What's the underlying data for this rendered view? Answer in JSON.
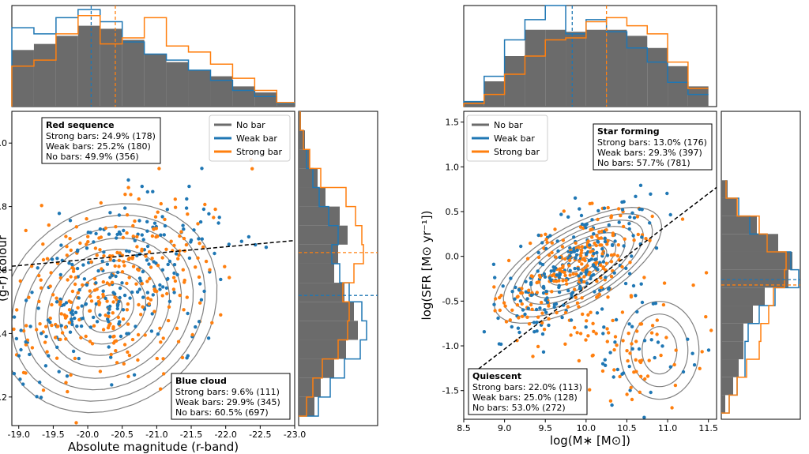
{
  "colors": {
    "no_bar": "#6b6b6b",
    "weak_bar": "#1f77b4",
    "strong_bar": "#ff7f0e",
    "contour": "#808080",
    "divider": "#000000"
  },
  "chart_data": [
    {
      "type": "scatter",
      "panel": "left",
      "xlabel": "Absolute magnitude (r-band)",
      "ylabel": "(g-r) colour",
      "xlim": [
        -18.9,
        -23.0
      ],
      "ylim": [
        0.11,
        1.1
      ],
      "xticks": [
        "-19.0",
        "-19.5",
        "-20.0",
        "-20.5",
        "-21.0",
        "-21.5",
        "-22.0",
        "-22.5",
        "-23.0"
      ],
      "yticks": [
        "0.2",
        "0.4",
        "0.6",
        "0.8",
        "1.0"
      ],
      "legend": {
        "placement": "top-right",
        "entries": [
          "No bar",
          "Weak bar",
          "Strong bar"
        ]
      },
      "divider_line": {
        "x": [
          -18.9,
          -23.0
        ],
        "y": [
          0.612,
          0.693
        ]
      },
      "annotations": [
        {
          "title": "Red sequence",
          "lines": [
            "Strong bars: 24.9% (178)",
            "Weak bars: 25.2% (180)",
            "No bars: 49.9% (356)"
          ],
          "placement": "top-left"
        },
        {
          "title": "Blue cloud",
          "lines": [
            "Strong bars: 9.6% (111)",
            "Weak bars: 29.9% (345)",
            "No bars: 60.5% (697)"
          ],
          "placement": "bottom-right"
        }
      ],
      "contour_center": {
        "x": -20.3,
        "y": 0.48
      },
      "top_hist": {
        "bin_edges": [
          -18.9,
          -19.22,
          -19.54,
          -19.86,
          -20.18,
          -20.5,
          -20.82,
          -21.14,
          -21.46,
          -21.78,
          -22.1,
          -22.42,
          -22.74,
          -23.0
        ],
        "no_bar": [
          0.56,
          0.62,
          0.7,
          0.8,
          0.77,
          0.66,
          0.52,
          0.44,
          0.36,
          0.3,
          0.2,
          0.14,
          0.03
        ],
        "weak_bar": [
          0.78,
          0.72,
          0.88,
          0.96,
          0.84,
          0.64,
          0.52,
          0.46,
          0.36,
          0.26,
          0.16,
          0.1,
          0.03
        ],
        "strong_bar": [
          0.4,
          0.46,
          0.72,
          0.9,
          0.62,
          0.68,
          0.88,
          0.6,
          0.54,
          0.42,
          0.28,
          0.16,
          0.04
        ],
        "median_weak": -20.05,
        "median_strong": -20.4
      },
      "right_hist": {
        "bin_edges": [
          0.14,
          0.2,
          0.26,
          0.32,
          0.38,
          0.44,
          0.5,
          0.56,
          0.62,
          0.68,
          0.74,
          0.8,
          0.86,
          0.92,
          0.98,
          1.04,
          1.1
        ],
        "no_bar": [
          0.2,
          0.28,
          0.45,
          0.6,
          0.75,
          0.7,
          0.58,
          0.45,
          0.5,
          0.62,
          0.52,
          0.34,
          0.24,
          0.14,
          0.08,
          0.03
        ],
        "weak_bar": [
          0.25,
          0.4,
          0.58,
          0.78,
          0.86,
          0.8,
          0.64,
          0.52,
          0.42,
          0.5,
          0.38,
          0.26,
          0.18,
          0.1,
          0.06,
          0.02
        ],
        "strong_bar": [
          0.1,
          0.18,
          0.3,
          0.5,
          0.62,
          0.64,
          0.56,
          0.7,
          0.82,
          0.8,
          0.72,
          0.6,
          0.28,
          0.14,
          0.06,
          0.02
        ],
        "median_weak": 0.52,
        "median_strong": 0.655
      }
    },
    {
      "type": "scatter",
      "panel": "right",
      "xlabel": "log(M∗ [M⊙])",
      "ylabel": "log(SFR [M⊙ yr⁻¹])",
      "xlim": [
        8.5,
        11.6
      ],
      "ylim": [
        -1.82,
        1.62
      ],
      "xticks": [
        "8.5",
        "9.0",
        "9.5",
        "10.0",
        "10.5",
        "11.0",
        "11.5"
      ],
      "yticks": [
        "-1.5",
        "-1.0",
        "-0.5",
        "0.0",
        "0.5",
        "1.0",
        "1.5"
      ],
      "legend": {
        "placement": "top-left",
        "entries": [
          "No bar",
          "Weak bar",
          "Strong bar"
        ]
      },
      "divider_line": {
        "x": [
          8.62,
          11.6
        ],
        "y": [
          -1.3,
          0.77
        ]
      },
      "annotations": [
        {
          "title": "Star forming",
          "lines": [
            "Strong bars: 13.0% (176)",
            "Weak bars: 29.3% (397)",
            "No bars: 57.7% (781)"
          ],
          "placement": "top-right"
        },
        {
          "title": "Quiescent",
          "lines": [
            "Strong bars: 22.0% (113)",
            "Weak bars: 25.0% (128)",
            "No bars: 53.0% (272)"
          ],
          "placement": "bottom-left"
        }
      ],
      "contour_center": {
        "x": 9.9,
        "y": -0.1
      },
      "top_hist": {
        "bin_edges": [
          8.5,
          8.75,
          9.0,
          9.25,
          9.5,
          9.75,
          10.0,
          10.25,
          10.5,
          10.75,
          11.0,
          11.25,
          11.5
        ],
        "no_bar": [
          0.05,
          0.25,
          0.5,
          0.76,
          0.76,
          0.74,
          0.76,
          0.76,
          0.7,
          0.58,
          0.4,
          0.2
        ],
        "weak_bar": [
          0.05,
          0.3,
          0.66,
          0.86,
          1.0,
          0.72,
          0.86,
          0.74,
          0.58,
          0.44,
          0.24,
          0.12
        ],
        "strong_bar": [
          0.03,
          0.12,
          0.32,
          0.5,
          0.66,
          0.68,
          0.84,
          0.88,
          0.8,
          0.72,
          0.44,
          0.18
        ],
        "median_weak": 9.83,
        "median_strong": 10.25
      },
      "right_hist": {
        "bin_edges": [
          -1.75,
          -1.55,
          -1.35,
          -1.15,
          -0.95,
          -0.75,
          -0.55,
          -0.35,
          -0.15,
          0.05,
          0.25,
          0.45,
          0.65,
          0.85
        ],
        "no_bar": [
          0.05,
          0.15,
          0.22,
          0.28,
          0.28,
          0.4,
          0.55,
          0.85,
          0.9,
          0.72,
          0.45,
          0.2,
          0.08
        ],
        "weak_bar": [
          0.1,
          0.2,
          0.3,
          0.3,
          0.34,
          0.48,
          0.68,
          0.98,
          0.88,
          0.58,
          0.36,
          0.22,
          0.06
        ],
        "strong_bar": [
          0.1,
          0.2,
          0.32,
          0.48,
          0.5,
          0.6,
          0.66,
          0.8,
          0.82,
          0.58,
          0.48,
          0.2,
          0.06
        ],
        "median_weak": -0.26,
        "median_strong": -0.32
      }
    }
  ]
}
